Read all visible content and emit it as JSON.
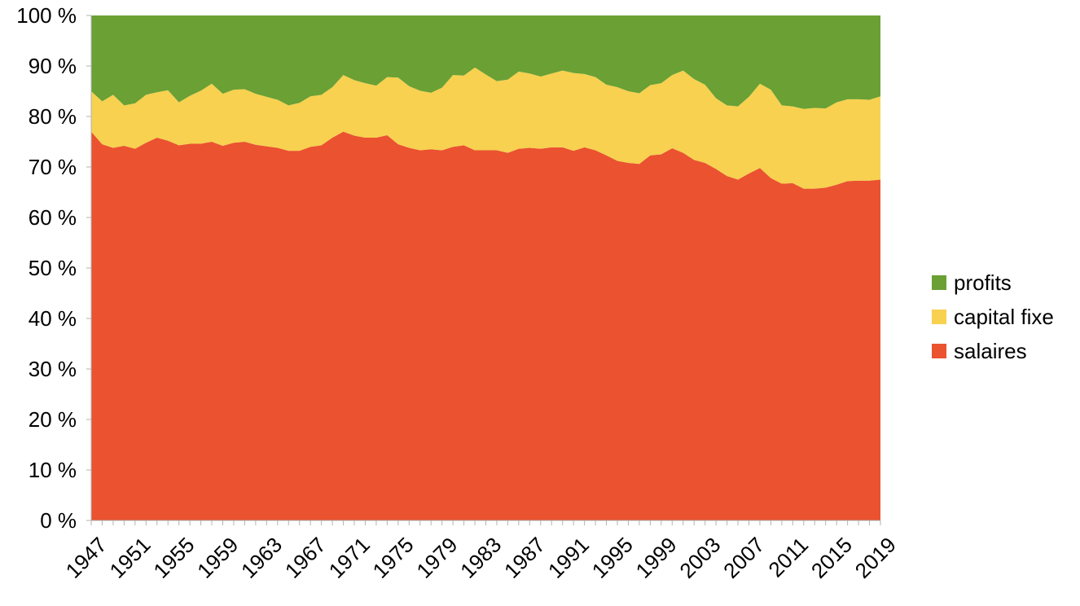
{
  "chart_data": {
    "type": "area",
    "stacked": true,
    "percent": true,
    "title": "",
    "xlabel": "",
    "ylabel": "",
    "ylim": [
      0,
      100
    ],
    "y_ticks": [
      "0 %",
      "10 %",
      "20 %",
      "30 %",
      "40 %",
      "50 %",
      "60 %",
      "70 %",
      "80 %",
      "90 %",
      "100 %"
    ],
    "x_start": 1947,
    "x_end": 2019,
    "x_tick_labels": [
      "1947",
      "1951",
      "1955",
      "1959",
      "1963",
      "1967",
      "1971",
      "1975",
      "1979",
      "1983",
      "1987",
      "1991",
      "1995",
      "1999",
      "2003",
      "2007",
      "2011",
      "2015",
      "2019"
    ],
    "grid": false,
    "legend_position": "right",
    "x": [
      1947,
      1948,
      1949,
      1950,
      1951,
      1952,
      1953,
      1954,
      1955,
      1956,
      1957,
      1958,
      1959,
      1960,
      1961,
      1962,
      1963,
      1964,
      1965,
      1966,
      1967,
      1968,
      1969,
      1970,
      1971,
      1972,
      1973,
      1974,
      1975,
      1976,
      1977,
      1978,
      1979,
      1980,
      1981,
      1982,
      1983,
      1984,
      1985,
      1986,
      1987,
      1988,
      1989,
      1990,
      1991,
      1992,
      1993,
      1994,
      1995,
      1996,
      1997,
      1998,
      1999,
      2000,
      2001,
      2002,
      2003,
      2004,
      2005,
      2006,
      2007,
      2008,
      2009,
      2010,
      2011,
      2012,
      2013,
      2014,
      2015,
      2016,
      2017,
      2018,
      2019
    ],
    "series": [
      {
        "name": "salaires",
        "color": "#ea5230",
        "values": [
          77,
          74.5,
          73.8,
          74.2,
          73.6,
          74.8,
          75.8,
          75.2,
          74.3,
          74.6,
          74.6,
          75,
          74.2,
          74.8,
          75,
          74.4,
          74.1,
          73.8,
          73.2,
          73.2,
          74,
          74.3,
          75.8,
          77,
          76.2,
          75.8,
          75.8,
          76.3,
          74.5,
          73.8,
          73.3,
          73.5,
          73.3,
          74,
          74.3,
          73.3,
          73.3,
          73.3,
          72.8,
          73.6,
          73.8,
          73.6,
          73.9,
          73.9,
          73.2,
          73.9,
          73.3,
          72.3,
          71.2,
          70.8,
          70.6,
          72.3,
          72.5,
          73.7,
          72.8,
          71.4,
          70.8,
          69.6,
          68.2,
          67.5,
          68.7,
          69.8,
          67.8,
          66.7,
          66.8,
          65.7,
          65.7,
          65.9,
          66.5,
          67.2,
          67.3,
          67.3,
          67.5
        ]
      },
      {
        "name": "capital fixe",
        "color": "#f7d14f",
        "values": [
          8,
          8.5,
          10.5,
          8,
          9,
          9.5,
          9,
          10,
          8.5,
          9.5,
          10.5,
          11.5,
          10.3,
          10.5,
          10.4,
          10.1,
          9.8,
          9.5,
          9,
          9.5,
          10,
          10,
          10,
          11.2,
          11,
          10.8,
          10.3,
          11.5,
          13.2,
          12.2,
          11.8,
          11.2,
          12.4,
          14.2,
          13.8,
          16.4,
          15,
          13.7,
          14.5,
          15.3,
          14.7,
          14.3,
          14.6,
          15.2,
          15.4,
          14.5,
          14.5,
          14,
          14.6,
          14.2,
          14,
          13.9,
          14.1,
          14.5,
          16.3,
          16,
          15.5,
          14,
          14,
          14.5,
          15.2,
          16.7,
          17.5,
          15.5,
          15.2,
          15.8,
          16,
          15.7,
          16.3,
          16.2,
          16.1,
          16,
          16.5
        ]
      },
      {
        "name": "profits",
        "color": "#6aa034",
        "values": [
          15,
          17,
          15.7,
          17.8,
          17.4,
          15.7,
          15.2,
          14.8,
          17.2,
          15.9,
          14.9,
          13.5,
          15.5,
          14.7,
          14.6,
          15.5,
          16.1,
          16.7,
          17.8,
          17.3,
          16,
          15.7,
          14.2,
          11.8,
          12.8,
          13.4,
          13.9,
          12.2,
          12.3,
          14,
          14.9,
          15.3,
          14.3,
          11.8,
          11.9,
          10.3,
          11.7,
          13,
          12.7,
          11.1,
          11.5,
          12.1,
          11.5,
          10.9,
          11.4,
          11.6,
          12.2,
          13.7,
          14.2,
          15,
          15.4,
          13.8,
          13.4,
          11.8,
          10.9,
          12.6,
          13.7,
          16.4,
          17.8,
          18,
          16.1,
          13.5,
          14.7,
          17.8,
          18,
          18.5,
          18.3,
          18.4,
          17.2,
          16.6,
          16.6,
          16.7,
          16
        ]
      }
    ],
    "legend_order": [
      "profits",
      "capital fixe",
      "salaires"
    ]
  }
}
